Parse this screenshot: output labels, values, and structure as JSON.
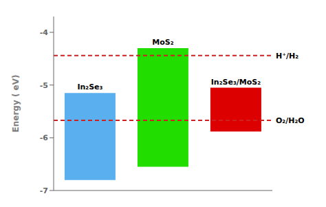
{
  "chart_data": {
    "type": "bar",
    "categories": [
      "In₂Se₃",
      "MoS₂",
      "In₂Se₃/MoS₂"
    ],
    "values": [
      [
        -6.8,
        -5.15
      ],
      [
        -6.55,
        -4.3
      ],
      [
        -5.88,
        -5.05
      ]
    ],
    "colors": [
      "#5aafee",
      "#22dd00",
      "#dd0000"
    ],
    "hlines": [
      {
        "y": -4.44,
        "label": "H⁺/H₂",
        "color": "#cc2222",
        "line_style": "dashed"
      },
      {
        "y": -5.67,
        "label": "O₂/H₂O",
        "color": "#cc2222",
        "line_style": "dashed"
      }
    ],
    "ylabel": "Energy ( eV)",
    "ylim": [
      -7.0,
      -3.7
    ],
    "yticks": [
      -7,
      -6,
      -5,
      -4
    ],
    "tick_labels": "y",
    "grid": false
  }
}
